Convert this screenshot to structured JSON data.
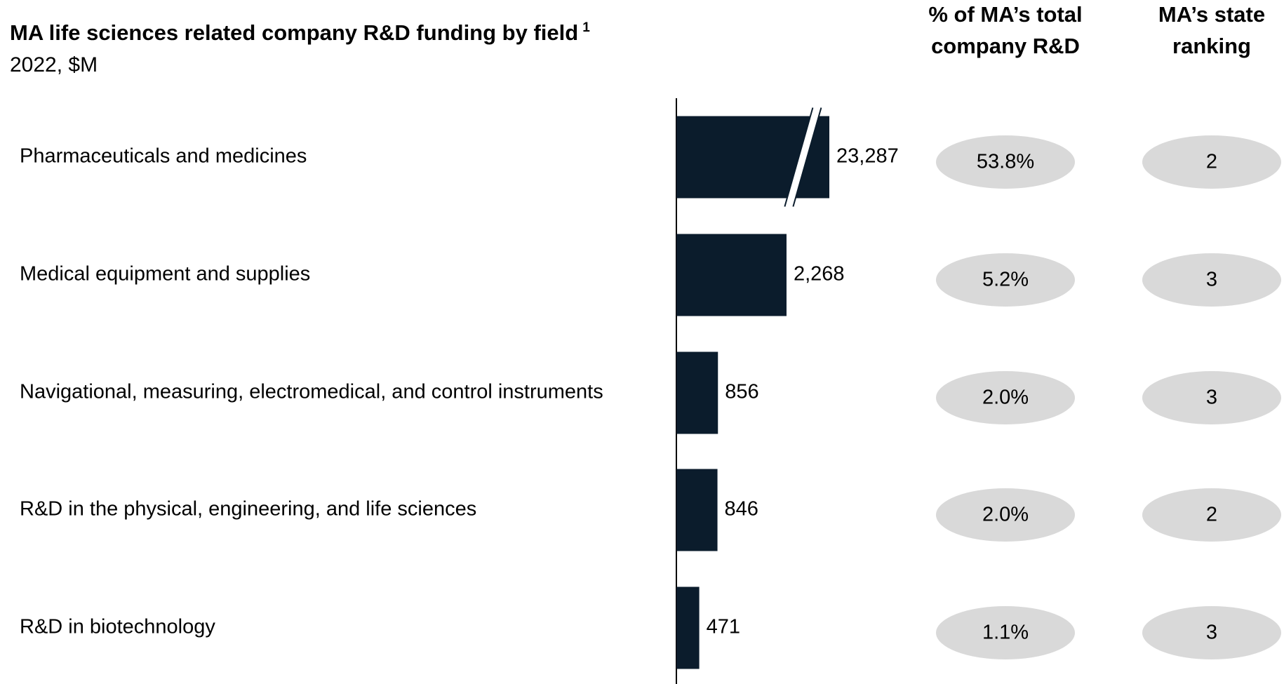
{
  "chart_data": {
    "type": "bar",
    "orientation": "horizontal",
    "title": "MA life sciences related company R&D funding by field",
    "title_note": "1",
    "subtitle": "2022, $M",
    "categories": [
      "Pharmaceuticals and medicines",
      "Medical equipment and supplies",
      "Navigational, measuring, electromedical, and control instruments",
      "R&D in the physical, engineering, and life sciences",
      "R&D in biotechnology"
    ],
    "values": [
      23287,
      2268,
      856,
      846,
      471
    ],
    "value_labels": [
      "23,287",
      "2,268",
      "856",
      "846",
      "471"
    ],
    "color": "#0b1c2c",
    "xlim": [
      0,
      3150
    ],
    "axis_break": true,
    "columns": [
      {
        "header": [
          "% of MA’s total",
          "company R&D"
        ],
        "values": [
          53.8,
          5.2,
          2.0,
          2.0,
          1.1
        ],
        "value_labels": [
          "53.8%",
          "5.2%",
          "2.0%",
          "2.0%",
          "1.1%"
        ],
        "color": "#d9d9d9"
      },
      {
        "header": [
          "MA’s state",
          "ranking"
        ],
        "values": [
          2,
          3,
          3,
          2,
          3
        ],
        "color": "#d9d9d9"
      }
    ]
  }
}
